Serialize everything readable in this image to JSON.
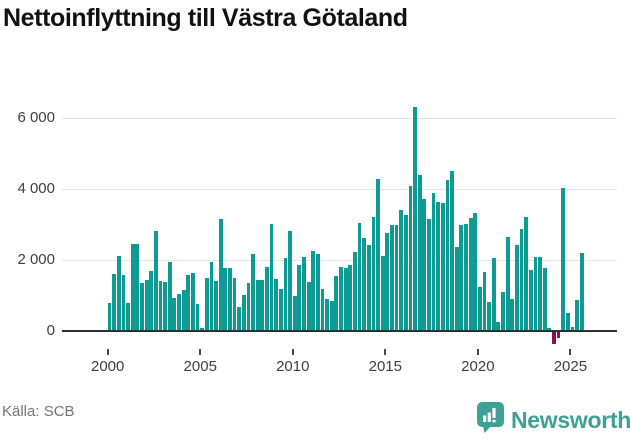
{
  "title": "Nettoinflyttning till Västra Götaland",
  "source_label": "Källa: SCB",
  "logo": {
    "name": "Newsworthy",
    "icon": "newsworthy-badge-bar-chart-exclamation"
  },
  "colors": {
    "bar": "#0D9B93",
    "bar_negative": "#8E104C",
    "gridline": "#E4E4E4",
    "axis_line": "#2F2F2F",
    "axis_text": "#3F3F3F",
    "title_text": "#111111",
    "source_text": "#757575",
    "logo_teal": "#3FA096"
  },
  "chart_data": {
    "type": "bar",
    "title": "Nettoinflyttning till Västra Götaland",
    "xlabel": "",
    "ylabel": "",
    "ylim": [
      -500,
      6500
    ],
    "grid": "horizontal",
    "legend": "none",
    "y_ticks": [
      {
        "label": "6 000",
        "value": 6000
      },
      {
        "label": "4 000",
        "value": 4000
      },
      {
        "label": "2 000",
        "value": 2000
      },
      {
        "label": "0",
        "value": 0
      }
    ],
    "x_ticks": [
      "2000",
      "2005",
      "2010",
      "2015",
      "2020",
      "2025"
    ],
    "categories": [
      "2000Q1",
      "2000Q2",
      "2000Q3",
      "2000Q4",
      "2001Q1",
      "2001Q2",
      "2001Q3",
      "2001Q4",
      "2002Q1",
      "2002Q2",
      "2002Q3",
      "2002Q4",
      "2003Q1",
      "2003Q2",
      "2003Q3",
      "2003Q4",
      "2004Q1",
      "2004Q2",
      "2004Q3",
      "2004Q4",
      "2005Q1",
      "2005Q2",
      "2005Q3",
      "2005Q4",
      "2006Q1",
      "2006Q2",
      "2006Q3",
      "2006Q4",
      "2007Q1",
      "2007Q2",
      "2007Q3",
      "2007Q4",
      "2008Q1",
      "2008Q2",
      "2008Q3",
      "2008Q4",
      "2009Q1",
      "2009Q2",
      "2009Q3",
      "2009Q4",
      "2010Q1",
      "2010Q2",
      "2010Q3",
      "2010Q4",
      "2011Q1",
      "2011Q2",
      "2011Q3",
      "2011Q4",
      "2012Q1",
      "2012Q2",
      "2012Q3",
      "2012Q4",
      "2013Q1",
      "2013Q2",
      "2013Q3",
      "2013Q4",
      "2014Q1",
      "2014Q2",
      "2014Q3",
      "2014Q4",
      "2015Q1",
      "2015Q2",
      "2015Q3",
      "2015Q4",
      "2016Q1",
      "2016Q2",
      "2016Q3",
      "2016Q4",
      "2017Q1",
      "2017Q2",
      "2017Q3",
      "2017Q4",
      "2018Q1",
      "2018Q2",
      "2018Q3",
      "2018Q4",
      "2019Q1",
      "2019Q2",
      "2019Q3",
      "2019Q4",
      "2020Q1",
      "2020Q2",
      "2020Q3",
      "2020Q4",
      "2021Q1",
      "2021Q2",
      "2021Q3",
      "2021Q4",
      "2022Q1",
      "2022Q2",
      "2022Q3",
      "2022Q4",
      "2023Q1",
      "2023Q2",
      "2023Q3",
      "2023Q4",
      "2024Q1",
      "2024Q2",
      "2024Q3",
      "2024Q4",
      "2025Q1",
      "2025Q2",
      "2025Q3"
    ],
    "values": [
      780,
      1610,
      2110,
      1570,
      780,
      2440,
      2440,
      1340,
      1430,
      1690,
      2830,
      1420,
      1390,
      1950,
      930,
      1040,
      1160,
      1570,
      1620,
      750,
      90,
      1480,
      1930,
      1410,
      3150,
      1770,
      1770,
      1480,
      670,
      1010,
      1360,
      2170,
      1450,
      1450,
      1800,
      3010,
      1470,
      1180,
      2050,
      2820,
      990,
      1860,
      2080,
      1370,
      2260,
      2160,
      1180,
      900,
      850,
      1560,
      1810,
      1770,
      1860,
      2230,
      3050,
      2610,
      2420,
      3200,
      4280,
      2120,
      2750,
      2980,
      2980,
      3400,
      3280,
      4080,
      6300,
      4400,
      3710,
      3160,
      3900,
      3640,
      3600,
      4240,
      4510,
      2380,
      2990,
      3010,
      3180,
      3320,
      1250,
      1670,
      830,
      2050,
      260,
      1110,
      2640,
      890,
      2420,
      2870,
      3200,
      1720,
      2090,
      2090,
      1780,
      80,
      -350,
      -160,
      4040,
      500,
      120,
      870,
      2210
    ]
  }
}
